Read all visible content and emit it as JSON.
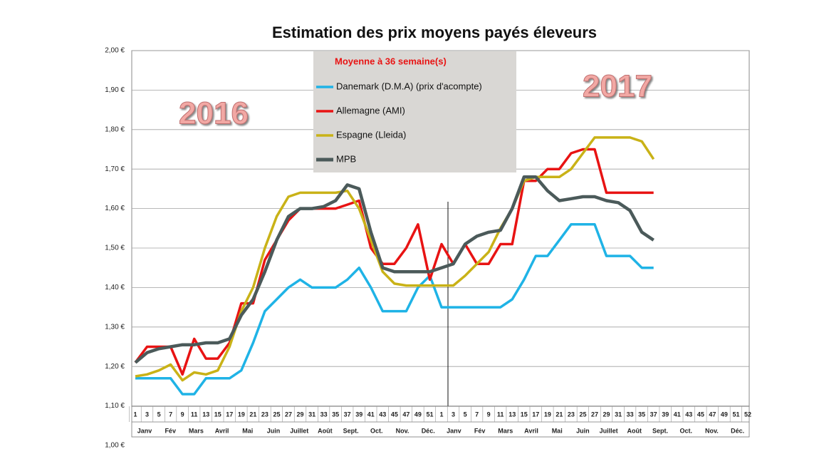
{
  "chart_data": {
    "type": "line",
    "title": "Estimation des prix moyens payés éleveurs",
    "legend_title": "Moyenne à  36 semaine(s)",
    "annotations": [
      "2016",
      "2017"
    ],
    "categories": [
      "1",
      "3",
      "5",
      "7",
      "9",
      "11",
      "13",
      "15",
      "17",
      "19",
      "21",
      "23",
      "25",
      "27",
      "29",
      "31",
      "33",
      "35",
      "37",
      "39",
      "41",
      "43",
      "45",
      "47",
      "49",
      "51",
      "1",
      "3",
      "5",
      "7",
      "9",
      "11",
      "13",
      "15",
      "17",
      "19",
      "21",
      "23",
      "25",
      "27",
      "29",
      "31",
      "33",
      "35",
      "37",
      "39",
      "41",
      "43",
      "45",
      "47",
      "49",
      "51",
      "52"
    ],
    "months": [
      "Janv",
      "Fév",
      "Mars",
      "Avril",
      "Mai",
      "Juin",
      "Juillet",
      "Août",
      "Sept.",
      "Oct.",
      "Nov.",
      "Déc.",
      "Janv",
      "Fév",
      "Mars",
      "Avril",
      "Mai",
      "Juin",
      "Juillet",
      "Août",
      "Sept.",
      "Oct.",
      "Nov.",
      "Déc."
    ],
    "series": [
      {
        "name": "Danemark (D.M.A) (prix d'acompte)",
        "color": "#1fb3e6",
        "values": [
          1.17,
          1.17,
          1.17,
          1.17,
          1.13,
          1.13,
          1.17,
          1.17,
          1.17,
          1.19,
          1.26,
          1.34,
          1.37,
          1.4,
          1.42,
          1.4,
          1.4,
          1.4,
          1.42,
          1.45,
          1.4,
          1.34,
          1.34,
          1.34,
          1.4,
          1.43,
          1.35,
          1.35,
          1.35,
          1.35,
          1.35,
          1.35,
          1.37,
          1.42,
          1.48,
          1.48,
          1.52,
          1.56,
          1.56,
          1.56,
          1.48,
          1.48,
          1.48,
          1.45,
          1.45,
          null,
          null,
          null,
          null,
          null,
          null,
          null,
          null
        ]
      },
      {
        "name": "Allemagne (AMI)",
        "color": "#e81313",
        "values": [
          1.21,
          1.25,
          1.25,
          1.25,
          1.18,
          1.27,
          1.22,
          1.22,
          1.26,
          1.36,
          1.36,
          1.47,
          1.52,
          1.57,
          1.6,
          1.6,
          1.6,
          1.6,
          1.61,
          1.62,
          1.5,
          1.46,
          1.46,
          1.5,
          1.56,
          1.42,
          1.51,
          1.46,
          1.51,
          1.46,
          1.46,
          1.51,
          1.51,
          1.67,
          1.67,
          1.7,
          1.7,
          1.74,
          1.75,
          1.75,
          1.64,
          1.64,
          1.64,
          1.64,
          1.64,
          null,
          null,
          null,
          null,
          null,
          null,
          null,
          null
        ]
      },
      {
        "name": "Espagne (Lleida)",
        "color": "#c9b217",
        "values": [
          1.175,
          1.18,
          1.19,
          1.205,
          1.165,
          1.185,
          1.18,
          1.19,
          1.25,
          1.34,
          1.4,
          1.5,
          1.58,
          1.63,
          1.64,
          1.64,
          1.64,
          1.64,
          1.645,
          1.6,
          1.52,
          1.44,
          1.41,
          1.405,
          1.405,
          1.405,
          1.405,
          1.405,
          1.43,
          1.46,
          1.49,
          1.55,
          1.6,
          1.67,
          1.68,
          1.68,
          1.68,
          1.7,
          1.74,
          1.78,
          1.78,
          1.78,
          1.78,
          1.77,
          1.725,
          null,
          null,
          null,
          null,
          null,
          null,
          null,
          null
        ]
      },
      {
        "name": "MPB",
        "color": "#4b5a5a",
        "values": [
          1.21,
          1.235,
          1.245,
          1.25,
          1.255,
          1.255,
          1.26,
          1.26,
          1.27,
          1.33,
          1.37,
          1.44,
          1.52,
          1.58,
          1.6,
          1.6,
          1.605,
          1.62,
          1.66,
          1.65,
          1.54,
          1.45,
          1.44,
          1.44,
          1.44,
          1.44,
          1.45,
          1.46,
          1.51,
          1.53,
          1.54,
          1.545,
          1.6,
          1.68,
          1.68,
          1.645,
          1.62,
          1.625,
          1.63,
          1.63,
          1.62,
          1.615,
          1.595,
          1.54,
          1.52,
          null,
          null,
          null,
          null,
          null,
          null,
          null,
          null
        ]
      }
    ],
    "ylim": [
      1.0,
      2.0
    ],
    "yticks": [
      {
        "value": 2.0,
        "label": "2,00 €"
      },
      {
        "value": 1.9,
        "label": "1,90 €"
      },
      {
        "value": 1.8,
        "label": "1,80 €"
      },
      {
        "value": 1.7,
        "label": "1,70 €"
      },
      {
        "value": 1.6,
        "label": "1,60 €"
      },
      {
        "value": 1.5,
        "label": "1,50 €"
      },
      {
        "value": 1.4,
        "label": "1,40 €"
      },
      {
        "value": 1.3,
        "label": "1,30 €"
      },
      {
        "value": 1.2,
        "label": "1,20 €"
      },
      {
        "value": 1.1,
        "label": "1,10 €"
      },
      {
        "value": 1.0,
        "label": "1,00 €"
      }
    ],
    "grid": true
  }
}
